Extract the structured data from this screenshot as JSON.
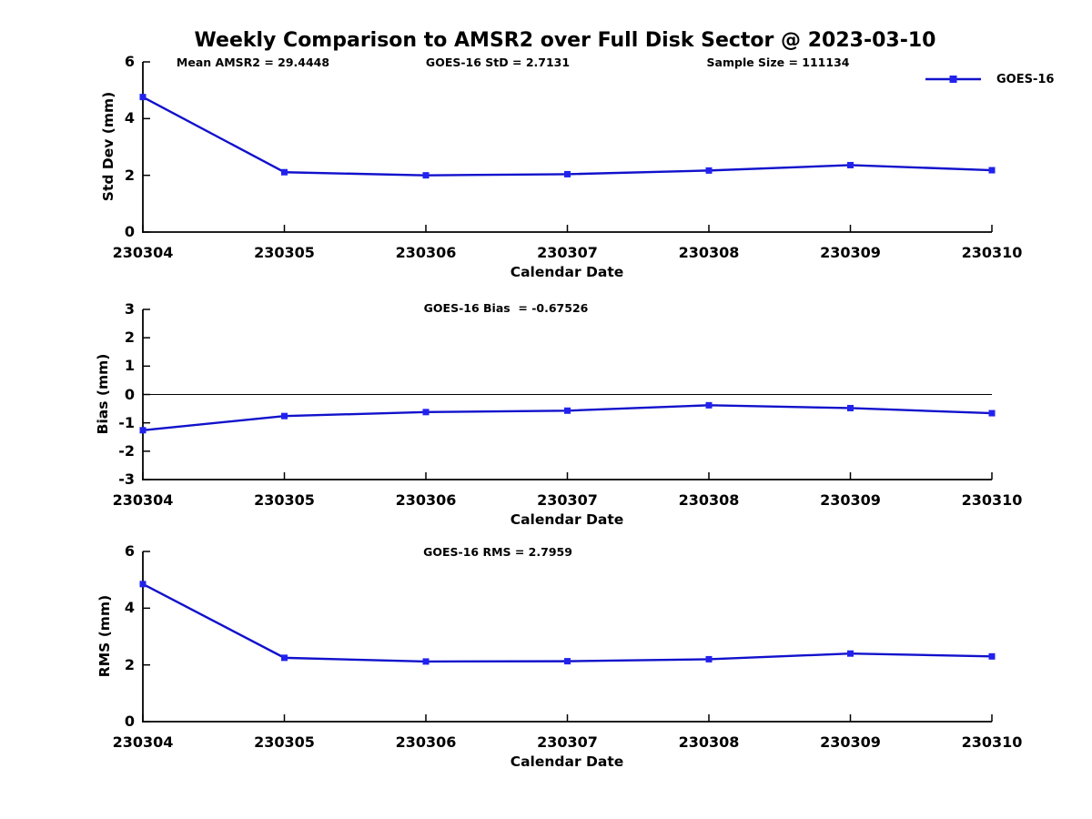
{
  "title": "Weekly Comparison to AMSR2 over Full Disk Sector @ 2023-03-10",
  "legend": {
    "label": "GOES-16"
  },
  "colors": {
    "line": "#1111cc",
    "marker": "#2222ee",
    "axis": "#000000"
  },
  "chart_data": [
    {
      "type": "line",
      "title": "",
      "categories": [
        "230304",
        "230305",
        "230306",
        "230307",
        "230308",
        "230309",
        "230310"
      ],
      "series": [
        {
          "name": "GOES-16",
          "values": [
            4.76,
            2.11,
            2.0,
            2.04,
            2.17,
            2.36,
            2.18
          ]
        }
      ],
      "xlabel": "Calendar Date",
      "ylabel": "Std Dev (mm)",
      "ylim": [
        0,
        6
      ],
      "yticks": [
        0,
        2,
        4,
        6
      ],
      "grid": false,
      "legend_position": "top-right",
      "annotations": [
        "Mean AMSR2 = 29.4448",
        "GOES-16 StD = 2.7131",
        "Sample Size = 111134"
      ]
    },
    {
      "type": "line",
      "title": "",
      "categories": [
        "230304",
        "230305",
        "230306",
        "230307",
        "230308",
        "230309",
        "230310"
      ],
      "series": [
        {
          "name": "GOES-16",
          "values": [
            -1.26,
            -0.76,
            -0.62,
            -0.57,
            -0.38,
            -0.48,
            -0.66
          ]
        }
      ],
      "xlabel": "Calendar Date",
      "ylabel": "Bias (mm)",
      "ylim": [
        -3,
        3
      ],
      "yticks": [
        -3,
        -2,
        -1,
        0,
        1,
        2,
        3
      ],
      "zero_line": true,
      "grid": false,
      "annotations": [
        "GOES-16 Bias  = -0.67526"
      ]
    },
    {
      "type": "line",
      "title": "",
      "categories": [
        "230304",
        "230305",
        "230306",
        "230307",
        "230308",
        "230309",
        "230310"
      ],
      "series": [
        {
          "name": "GOES-16",
          "values": [
            4.85,
            2.25,
            2.12,
            2.13,
            2.2,
            2.4,
            2.3
          ]
        }
      ],
      "xlabel": "Calendar Date",
      "ylabel": "RMS (mm)",
      "ylim": [
        0,
        6
      ],
      "yticks": [
        0,
        2,
        4,
        6
      ],
      "grid": false,
      "annotations": [
        "GOES-16 RMS = 2.7959"
      ]
    }
  ]
}
